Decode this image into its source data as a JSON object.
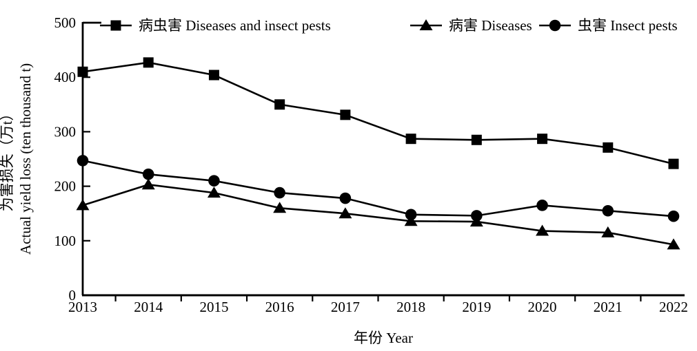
{
  "chart_data": {
    "type": "line",
    "title": "",
    "xlabel": "年份 Year",
    "ylabel_line1": "为害损失（万t）",
    "ylabel_line2": "Actual yield loss (ten thousand t)",
    "x": [
      2013,
      2014,
      2015,
      2016,
      2017,
      2018,
      2019,
      2020,
      2021,
      2022
    ],
    "ylim": [
      0,
      500
    ],
    "yticks": [
      0,
      100,
      200,
      300,
      400,
      500
    ],
    "grid": false,
    "legend_position": "top-inside",
    "line_color": "#000000",
    "background_color": "#ffffff",
    "series": [
      {
        "name": "病虫害 Diseases and insect pests",
        "marker": "square",
        "values": [
          410,
          427,
          404,
          350,
          331,
          287,
          285,
          287,
          271,
          241
        ]
      },
      {
        "name": "病害 Diseases",
        "marker": "triangle",
        "values": [
          165,
          203,
          188,
          160,
          150,
          136,
          135,
          118,
          115,
          93
        ]
      },
      {
        "name": "虫害 Insect pests",
        "marker": "circle",
        "values": [
          247,
          222,
          210,
          188,
          178,
          148,
          146,
          165,
          155,
          145
        ]
      }
    ]
  }
}
